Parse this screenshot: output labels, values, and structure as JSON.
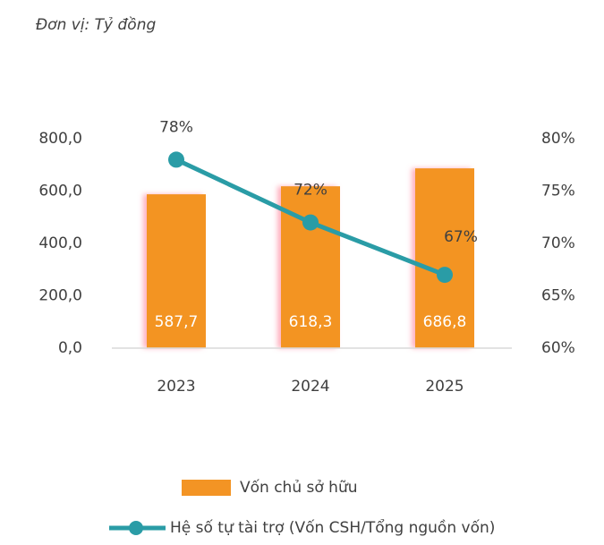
{
  "chart_data": {
    "type": "bar",
    "subtitle": "Đơn vị: Tỷ đồng",
    "categories": [
      "2023",
      "2024",
      "2025"
    ],
    "series": [
      {
        "name": "Vốn chủ sở hữu",
        "type": "bar",
        "color": "#f39424",
        "values": [
          587.7,
          618.3,
          686.8
        ],
        "value_labels": [
          "587,7",
          "618,3",
          "686,8"
        ]
      },
      {
        "name": "Hệ số tự tài trợ (Vốn CSH/Tổng nguồn vốn)",
        "type": "line",
        "axis": "y2",
        "color": "#2a9ca6",
        "values": [
          78,
          72,
          67
        ],
        "value_labels": [
          "78%",
          "72%",
          "67%"
        ]
      }
    ],
    "ylim": [
      0,
      800
    ],
    "yticks": [
      {
        "value": 0,
        "label": "0,0"
      },
      {
        "value": 200,
        "label": "200,0"
      },
      {
        "value": 400,
        "label": "400,0"
      },
      {
        "value": 600,
        "label": "600,0"
      },
      {
        "value": 800,
        "label": "800,0"
      }
    ],
    "y2lim": [
      60,
      80
    ],
    "y2ticks": [
      {
        "value": 60,
        "label": "60%"
      },
      {
        "value": 65,
        "label": "65%"
      },
      {
        "value": 70,
        "label": "70%"
      },
      {
        "value": 75,
        "label": "75%"
      },
      {
        "value": 80,
        "label": "80%"
      }
    ],
    "grid": false
  }
}
